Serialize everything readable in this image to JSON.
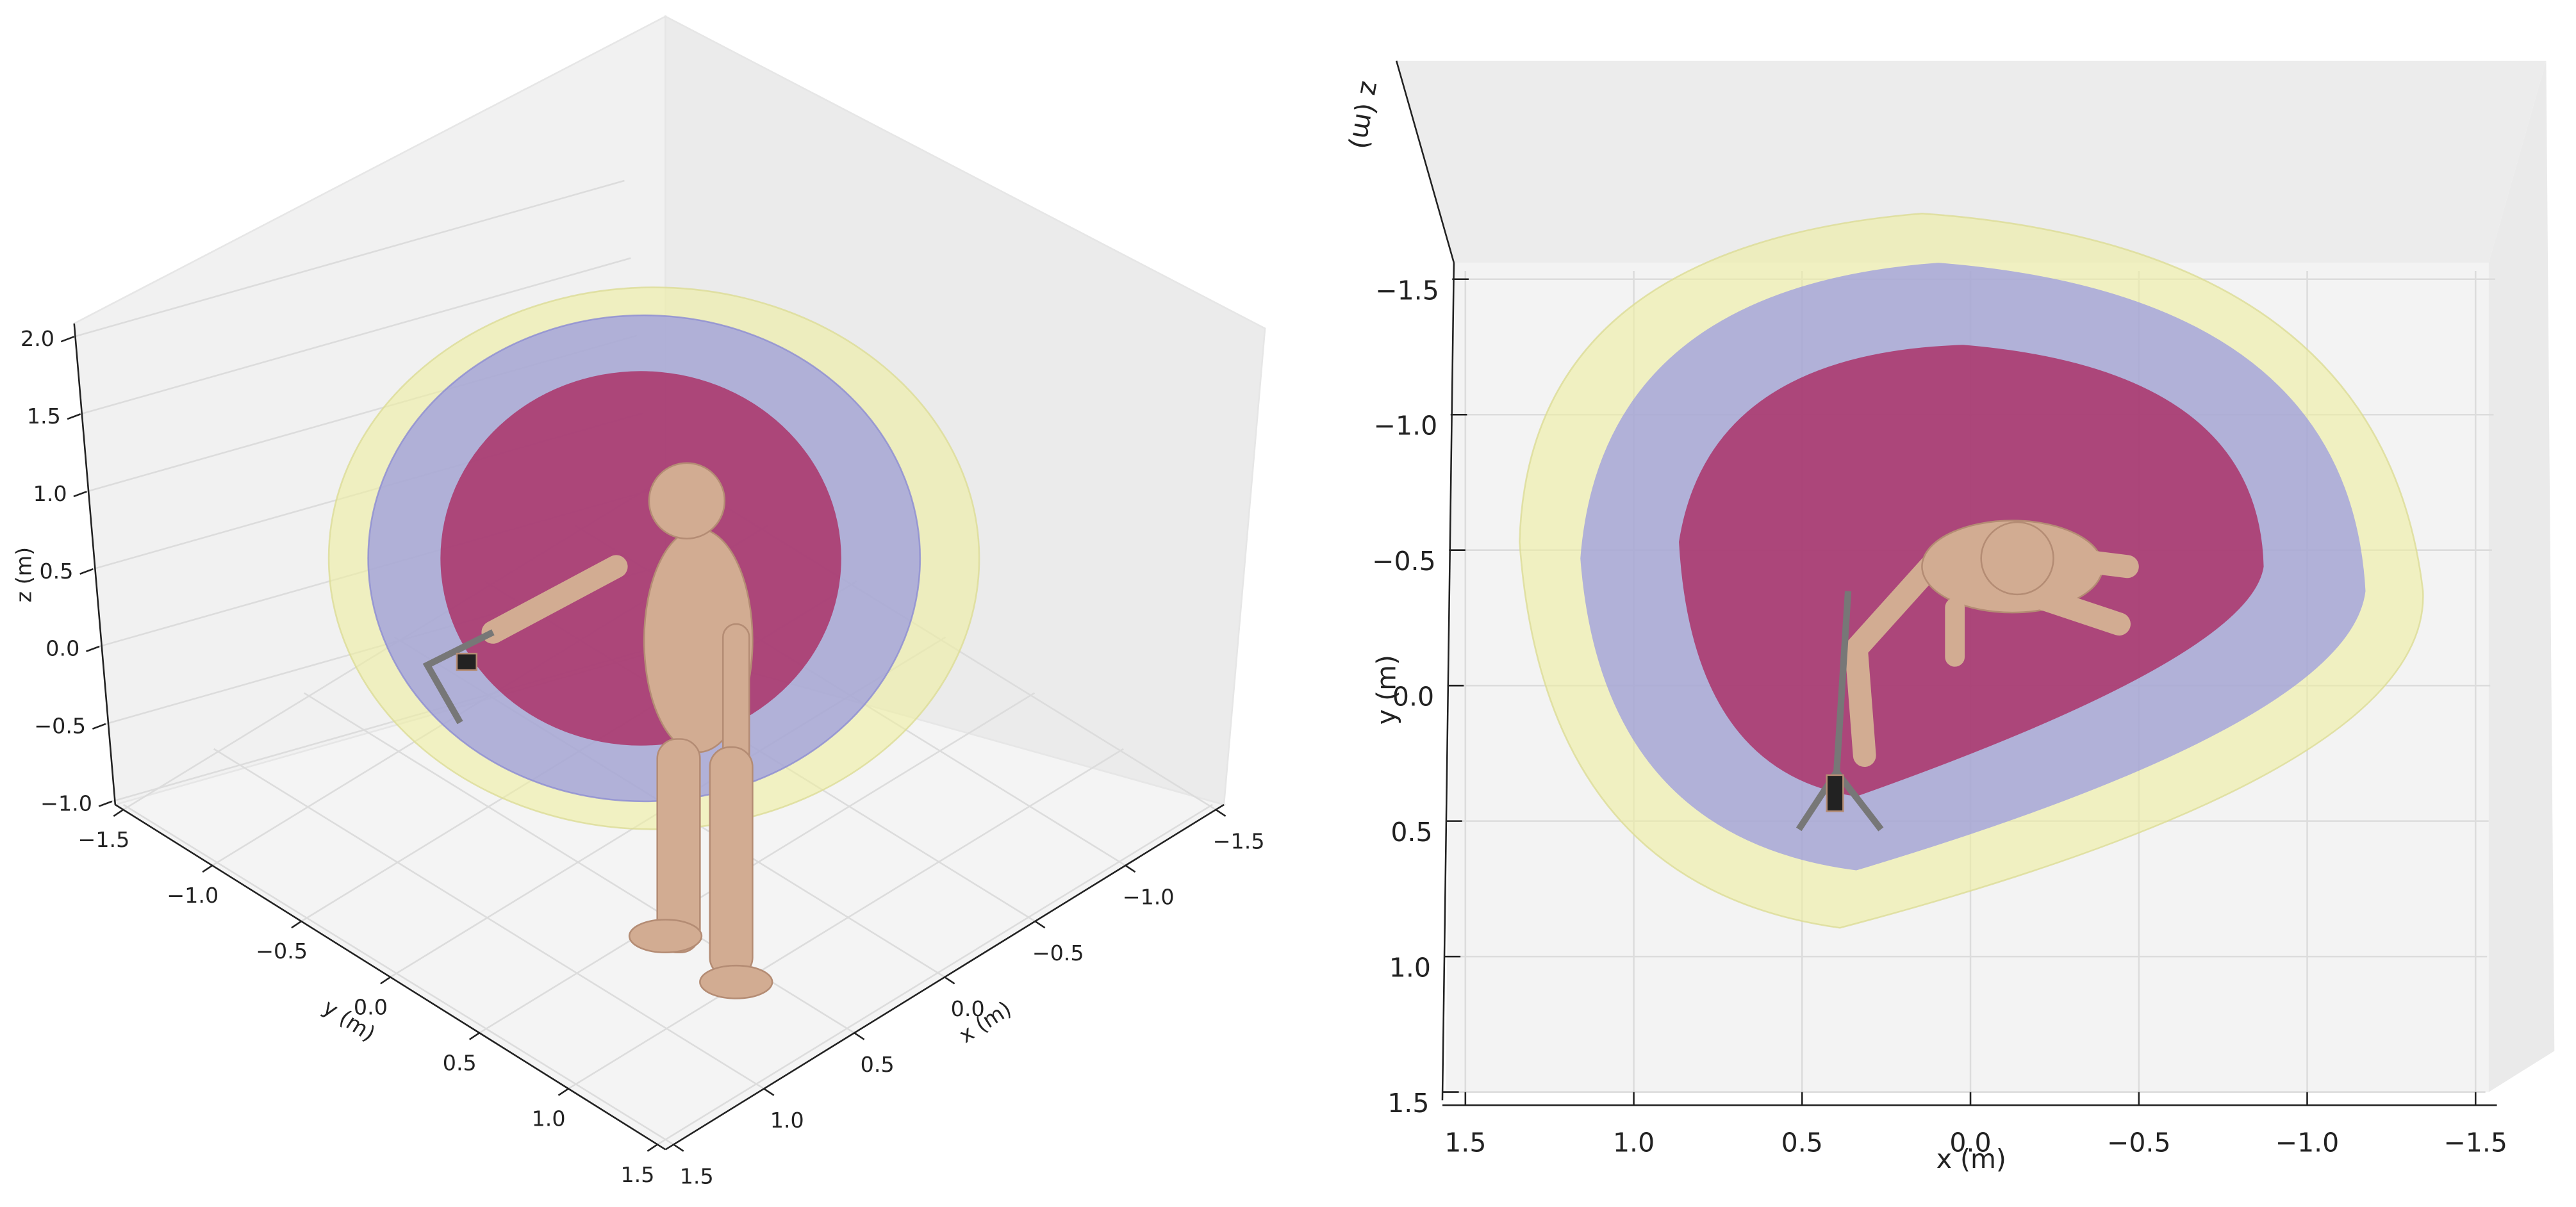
{
  "chart_data": [
    {
      "type": "3d",
      "xlabel": "x (m)",
      "ylabel": "y (m)",
      "zlabel": "z (m)",
      "xlim": [
        1.5,
        -1.5
      ],
      "xticks": [
        1.5,
        {
          "value": 1,
          "label": "1.0"
        },
        0.5,
        {
          "value": 0,
          "label": "0.0"
        },
        {
          "value": -0.5,
          "label": "−0.5"
        },
        {
          "value": -1,
          "label": "−1.0"
        },
        {
          "value": -1.5,
          "label": "−1.5"
        }
      ],
      "ylim": [
        -1.5,
        1.5
      ],
      "yticks": [
        {
          "value": -1.5,
          "label": "−1.5"
        },
        {
          "value": -1,
          "label": "−1.0"
        },
        {
          "value": -0.5,
          "label": "−0.5"
        },
        {
          "value": 0,
          "label": "0.0"
        },
        0.5,
        {
          "value": 1,
          "label": "1.0"
        },
        1.5
      ],
      "zlim": [
        -1,
        2
      ],
      "zticks": [
        {
          "value": -1,
          "label": "−1.0"
        },
        {
          "value": -0.5,
          "label": "−0.5"
        },
        {
          "value": 0,
          "label": "0.0"
        },
        0.5,
        {
          "value": 1,
          "label": "1.0"
        },
        1.5,
        {
          "value": 2,
          "label": "2.0"
        }
      ]
    },
    {
      "type": "3d",
      "xlabel": "x (m)",
      "ylabel": "y (m)",
      "zlabel": "z (m)",
      "xlim": [
        1.5,
        -1.5
      ],
      "xticks": [
        1.5,
        {
          "value": 1,
          "label": "1.0"
        },
        0.5,
        {
          "value": 0,
          "label": "0.0"
        },
        {
          "value": -0.5,
          "label": "−0.5"
        },
        {
          "value": -1,
          "label": "−1.0"
        },
        {
          "value": -1.5,
          "label": "−1.5"
        }
      ],
      "ylim": [
        -1.5,
        1.5
      ],
      "yticks": [
        {
          "value": -1.5,
          "label": "−1.5"
        },
        {
          "value": -1,
          "label": "−1.0"
        },
        {
          "value": -0.5,
          "label": "−0.5"
        },
        {
          "value": 0,
          "label": "0.0"
        },
        0.5,
        {
          "value": 1,
          "label": "1.0"
        },
        1.5
      ]
    }
  ]
}
